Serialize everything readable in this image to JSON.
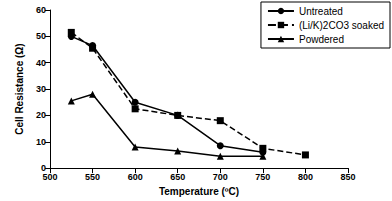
{
  "chart_data": {
    "type": "line",
    "x_label": "Temperature (ºC)",
    "y_label": "Cell Resistance (Ω)",
    "x": [
      525,
      550,
      600,
      650,
      700,
      750,
      800
    ],
    "series": [
      {
        "name": "Untreated",
        "color": "#000000",
        "marker": "circle",
        "line_style": "solid",
        "values": [
          50,
          46.5,
          25,
          20,
          8.5,
          6,
          null
        ]
      },
      {
        "name": "(Li/K)2CO3 soaked",
        "color": "#000000",
        "marker": "square",
        "line_style": "dashed",
        "values": [
          51.5,
          45.5,
          22.5,
          20,
          18,
          7.5,
          5
        ]
      },
      {
        "name": "Powdered",
        "color": "#000000",
        "marker": "triangle",
        "line_style": "solid",
        "values": [
          25.5,
          28,
          8,
          6.5,
          4.5,
          4.5,
          null
        ]
      }
    ],
    "xlim": [
      500,
      850
    ],
    "xticks": [
      500,
      550,
      600,
      650,
      700,
      750,
      800,
      850
    ],
    "ylim": [
      0,
      60
    ],
    "yticks": [
      0,
      10,
      20,
      30,
      40,
      50,
      60
    ],
    "grid": false,
    "legend": "upper right"
  }
}
